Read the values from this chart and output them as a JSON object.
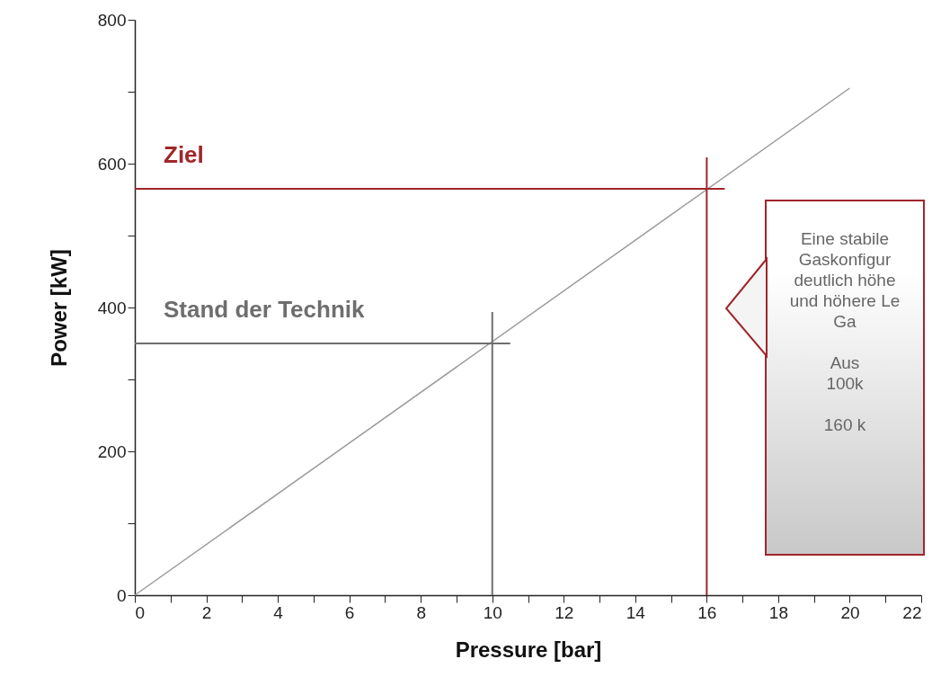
{
  "chart_data": {
    "type": "line",
    "xlabel": "Pressure [bar]",
    "ylabel": "Power [kW]",
    "x": [
      0,
      20
    ],
    "series": [
      {
        "color": "#9a9a9a",
        "values": [
          0,
          705
        ]
      }
    ],
    "xlim": [
      0,
      22
    ],
    "ylim": [
      0,
      800
    ],
    "xticks": [
      0,
      {
        "value": 1,
        "label": null
      },
      2,
      {
        "value": 3,
        "label": null
      },
      4,
      {
        "value": 5,
        "label": null
      },
      6,
      {
        "value": 7,
        "label": null
      },
      8,
      {
        "value": 9,
        "label": null
      },
      10,
      {
        "value": 11,
        "label": null
      },
      12,
      {
        "value": 13,
        "label": null
      },
      14,
      {
        "value": 15,
        "label": null
      },
      16,
      {
        "value": 17,
        "label": null
      },
      18,
      {
        "value": 19,
        "label": null
      },
      20,
      {
        "value": 21,
        "label": null
      },
      22
    ],
    "yticks": [
      0,
      {
        "value": 100,
        "label": null
      },
      200,
      {
        "value": 300,
        "label": null
      },
      400,
      {
        "value": 500,
        "label": null
      },
      600,
      {
        "value": 700,
        "label": null
      },
      800
    ],
    "ref_lines": [
      {
        "axis": "y",
        "value": 565,
        "label": "Ziel",
        "color": "#a0262a"
      },
      {
        "axis": "x",
        "value": 16,
        "color": "#a0262a"
      },
      {
        "axis": "y",
        "value": 350,
        "label": "Stand der Technik",
        "color": "#6e6e6e"
      },
      {
        "axis": "x",
        "value": 10,
        "color": "#6e6e6e"
      }
    ],
    "annotations": [
      "Eine stabile\nGaskonfigur\ndeutlich höhe\nund höhere Le\nGa\n\nAus\n100k\n\n160 k"
    ],
    "marker": "none",
    "line_style": "solid"
  }
}
